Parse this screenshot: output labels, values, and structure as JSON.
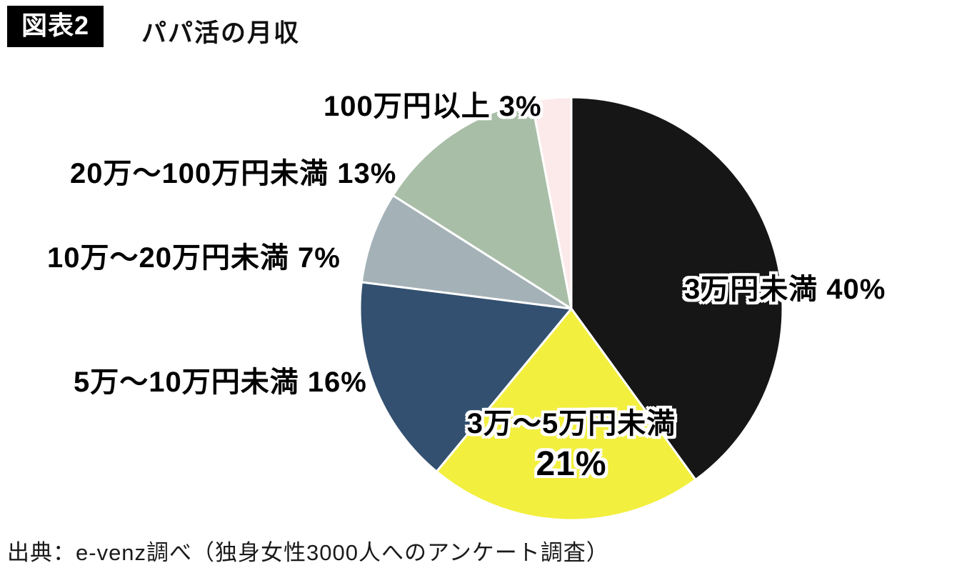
{
  "header": {
    "badge": "図表2",
    "title": "パパ活の月収"
  },
  "chart_data": {
    "type": "pie",
    "title": "パパ活の月収",
    "start_angle_deg": -90,
    "direction": "clockwise",
    "legend_position": "labels-around-pie",
    "slices": [
      {
        "label": "3万円未満",
        "value": 40,
        "percent_label": "40%",
        "color": "#161616"
      },
      {
        "label": "3万〜5万円未満",
        "value": 21,
        "percent_label": "21%",
        "color": "#f2ef3e"
      },
      {
        "label": "5万〜10万円未満",
        "value": 16,
        "percent_label": "16%",
        "color": "#335070"
      },
      {
        "label": "10万〜20万円未満",
        "value": 7,
        "percent_label": "7%",
        "color": "#a4b2b8"
      },
      {
        "label": "20万〜100万円未満",
        "value": 13,
        "percent_label": "13%",
        "color": "#a9bea7"
      },
      {
        "label": "100万円以上",
        "value": 3,
        "percent_label": "3%",
        "color": "#fce9e9"
      }
    ],
    "source": "出典：e-venz調べ（独身女性3000人へのアンケート調査）"
  }
}
